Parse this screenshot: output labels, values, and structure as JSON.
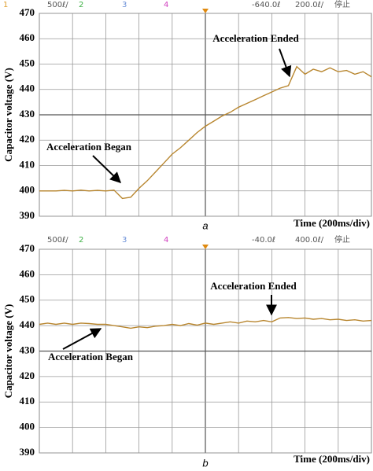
{
  "chart_data": [
    {
      "type": "line",
      "status_bar": [
        {
          "text": "1",
          "color": "#e0a030"
        },
        {
          "text": "500ℓ/",
          "color": "#555555"
        },
        {
          "text": "2",
          "color": "#3cb043"
        },
        {
          "text": "3",
          "color": "#6a8fd8"
        },
        {
          "text": "4",
          "color": "#d040c0"
        },
        {
          "text": "-640.0ℓ",
          "color": "#555555"
        },
        {
          "text": "200.0ℓ/",
          "color": "#555555"
        },
        {
          "text": "停止",
          "color": "#555555"
        }
      ],
      "ylabel": "Capacitor voltage (V)",
      "xlabel": "Time (200ms/div)",
      "caption": "a",
      "annotations": [
        "Acceleration Began",
        "Acceleration Ended"
      ],
      "ylim": [
        390,
        470
      ],
      "yticks": [
        390,
        400,
        410,
        420,
        430,
        440,
        450,
        460,
        470
      ],
      "grid": true,
      "xlim": [
        0,
        10
      ],
      "x": [
        0,
        0.25,
        0.5,
        0.75,
        1,
        1.25,
        1.5,
        1.75,
        2,
        2.25,
        2.5,
        2.75,
        3,
        3.25,
        3.5,
        3.75,
        4,
        4.25,
        4.5,
        4.75,
        5,
        5.25,
        5.5,
        5.75,
        6,
        6.25,
        6.5,
        6.75,
        7,
        7.25,
        7.5,
        7.75,
        8,
        8.25,
        8.5,
        8.75,
        9,
        9.25,
        9.5,
        9.75,
        10
      ],
      "values": [
        400,
        400,
        400,
        400.2,
        400,
        400.3,
        400,
        400.2,
        400,
        400.3,
        397,
        397.5,
        401,
        404,
        407.5,
        411,
        414.5,
        417,
        420,
        423,
        425.5,
        427.5,
        429.5,
        431,
        433,
        434.5,
        436,
        437.5,
        439,
        440.5,
        441.5,
        449,
        446,
        448,
        447,
        448.5,
        447,
        447.5,
        446,
        447,
        445
      ],
      "color": "#b8862f"
    },
    {
      "type": "line",
      "status_bar": [
        {
          "text": "500ℓ/",
          "color": "#555555"
        },
        {
          "text": "2",
          "color": "#3cb043"
        },
        {
          "text": "3",
          "color": "#6a8fd8"
        },
        {
          "text": "4",
          "color": "#d040c0"
        },
        {
          "text": "-40.0ℓ",
          "color": "#555555"
        },
        {
          "text": "400.0ℓ/",
          "color": "#555555"
        },
        {
          "text": "停止",
          "color": "#555555"
        }
      ],
      "ylabel": "Capacitor voltage (V)",
      "xlabel": "Time (200ms/div)",
      "caption": "b",
      "annotations": [
        "Acceleration Began",
        "Acceleration Ended"
      ],
      "ylim": [
        390,
        470
      ],
      "yticks": [
        390,
        400,
        410,
        420,
        430,
        440,
        450,
        460,
        470
      ],
      "grid": true,
      "xlim": [
        0,
        10
      ],
      "x": [
        0,
        0.25,
        0.5,
        0.75,
        1,
        1.25,
        1.5,
        1.75,
        2,
        2.25,
        2.5,
        2.75,
        3,
        3.25,
        3.5,
        3.75,
        4,
        4.25,
        4.5,
        4.75,
        5,
        5.25,
        5.5,
        5.75,
        6,
        6.25,
        6.5,
        6.75,
        7,
        7.25,
        7.5,
        7.75,
        8,
        8.25,
        8.5,
        8.75,
        9,
        9.25,
        9.5,
        9.75,
        10
      ],
      "values": [
        440.5,
        441,
        440.5,
        441,
        440.5,
        441,
        440.8,
        440.5,
        440.5,
        440,
        439.5,
        439,
        439.5,
        439.2,
        439.8,
        440,
        440.5,
        440,
        440.8,
        440.2,
        441,
        440.5,
        441,
        441.5,
        441,
        441.8,
        441.5,
        442,
        441.5,
        443,
        443.2,
        442.8,
        443,
        442.5,
        442.8,
        442.3,
        442.5,
        442,
        442.3,
        441.8,
        442
      ],
      "color": "#b8862f"
    }
  ]
}
